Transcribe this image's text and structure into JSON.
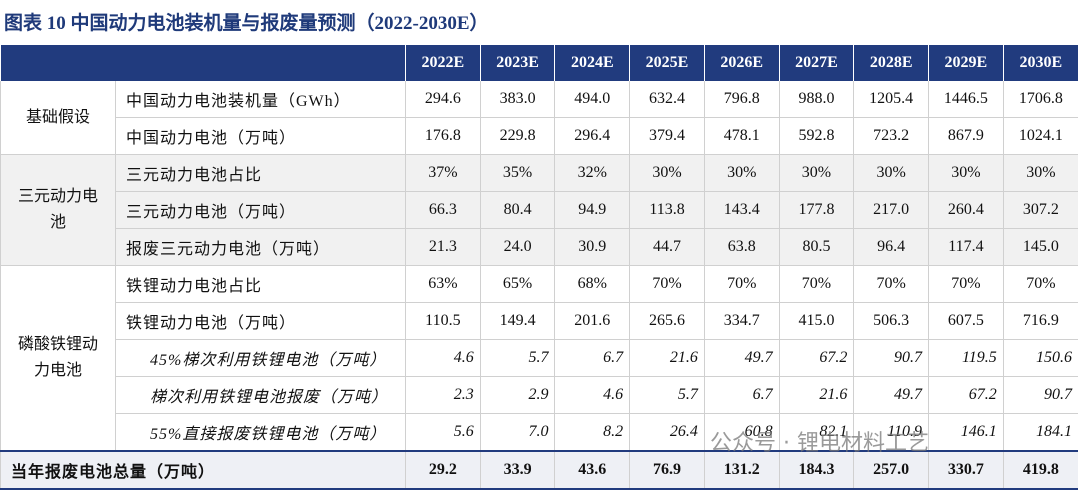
{
  "title": "图表 10  中国动力电池装机量与报废量预测（2022-2030E）",
  "table": {
    "header": [
      "2022E",
      "2023E",
      "2024E",
      "2025E",
      "2026E",
      "2027E",
      "2028E",
      "2029E",
      "2030E"
    ],
    "groups": [
      {
        "label": "基础假设",
        "shaded": false,
        "rows": [
          {
            "label": "中国动力电池装机量（GWh）",
            "italic": false,
            "cells": [
              "294.6",
              "383.0",
              "494.0",
              "632.4",
              "796.8",
              "988.0",
              "1205.4",
              "1446.5",
              "1706.8"
            ]
          },
          {
            "label": "中国动力电池（万吨）",
            "italic": false,
            "cells": [
              "176.8",
              "229.8",
              "296.4",
              "379.4",
              "478.1",
              "592.8",
              "723.2",
              "867.9",
              "1024.1"
            ]
          }
        ]
      },
      {
        "label": "三元动力电池",
        "shaded": true,
        "rows": [
          {
            "label": "三元动力电池占比",
            "italic": false,
            "cells": [
              "37%",
              "35%",
              "32%",
              "30%",
              "30%",
              "30%",
              "30%",
              "30%",
              "30%"
            ]
          },
          {
            "label": "三元动力电池（万吨）",
            "italic": false,
            "cells": [
              "66.3",
              "80.4",
              "94.9",
              "113.8",
              "143.4",
              "177.8",
              "217.0",
              "260.4",
              "307.2"
            ]
          },
          {
            "label": "报废三元动力电池（万吨）",
            "italic": false,
            "cells": [
              "21.3",
              "24.0",
              "30.9",
              "44.7",
              "63.8",
              "80.5",
              "96.4",
              "117.4",
              "145.0"
            ]
          }
        ]
      },
      {
        "label": "磷酸铁锂动力电池",
        "shaded": false,
        "rows": [
          {
            "label": "铁锂动力电池占比",
            "italic": false,
            "cells": [
              "63%",
              "65%",
              "68%",
              "70%",
              "70%",
              "70%",
              "70%",
              "70%",
              "70%"
            ]
          },
          {
            "label": "铁锂动力电池（万吨）",
            "italic": false,
            "cells": [
              "110.5",
              "149.4",
              "201.6",
              "265.6",
              "334.7",
              "415.0",
              "506.3",
              "607.5",
              "716.9"
            ]
          },
          {
            "label": "45%梯次利用铁锂电池（万吨）",
            "italic": true,
            "cells": [
              "4.6",
              "5.7",
              "6.7",
              "21.6",
              "49.7",
              "67.2",
              "90.7",
              "119.5",
              "150.6"
            ]
          },
          {
            "label": "梯次利用铁锂电池报废（万吨）",
            "italic": true,
            "cells": [
              "2.3",
              "2.9",
              "4.6",
              "5.7",
              "6.7",
              "21.6",
              "49.7",
              "67.2",
              "90.7"
            ]
          },
          {
            "label": "55%直接报废铁锂电池（万吨）",
            "italic": true,
            "cells": [
              "5.6",
              "7.0",
              "8.2",
              "26.4",
              "60.8",
              "82.1",
              "110.9",
              "146.1",
              "184.1"
            ]
          }
        ]
      }
    ],
    "total": {
      "label": "当年报废电池总量（万吨）",
      "cells": [
        "29.2",
        "33.9",
        "43.6",
        "76.9",
        "131.2",
        "184.3",
        "257.0",
        "330.7",
        "419.8"
      ]
    }
  },
  "watermark": "公众号 · 锂电材料工艺"
}
